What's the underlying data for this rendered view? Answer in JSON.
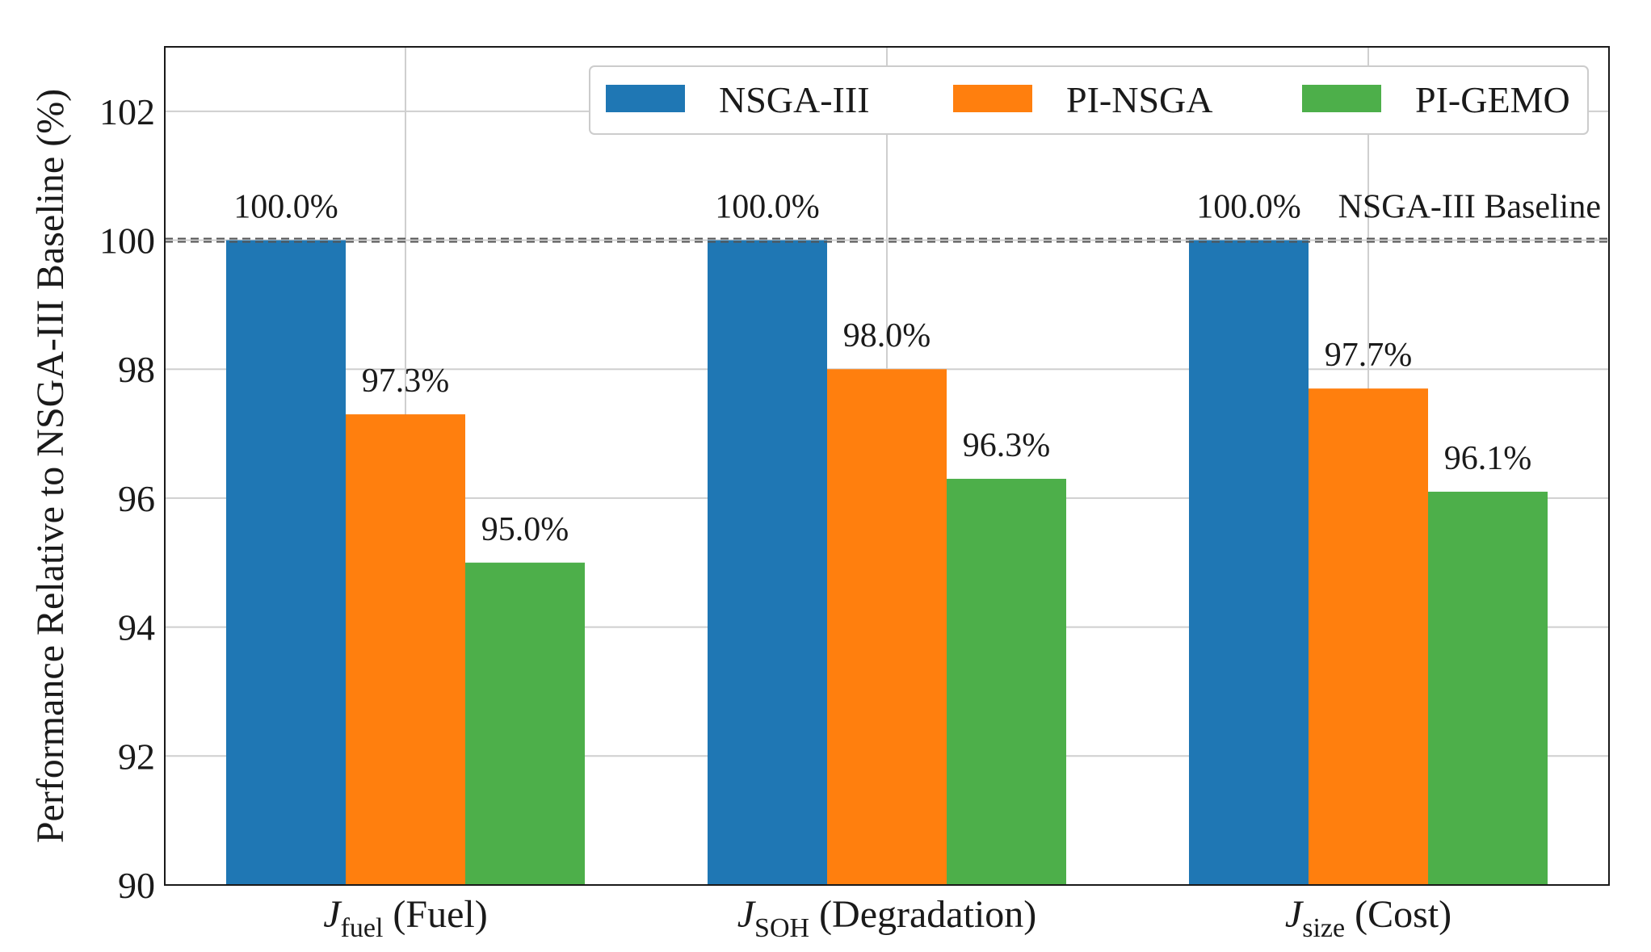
{
  "chart_data": {
    "type": "bar",
    "title": "",
    "ylabel": "Performance Relative to NSGA-III Baseline (%)",
    "xlabel": "",
    "ylim": [
      90,
      103
    ],
    "yticks": [
      90,
      92,
      94,
      96,
      98,
      100,
      102
    ],
    "grid": true,
    "legend_position": "top-right",
    "categories": [
      {
        "symbol": "J",
        "sub": "fuel",
        "rest": " (Fuel)"
      },
      {
        "symbol": "J",
        "sub": "SOH",
        "rest": " (Degradation)"
      },
      {
        "symbol": "J",
        "sub": "size",
        "rest": " (Cost)"
      }
    ],
    "series": [
      {
        "name": "NSGA-III",
        "color": "#1f77b4",
        "values": [
          100.0,
          100.0,
          100.0
        ],
        "labels": [
          "100.0%",
          "100.0%",
          "100.0%"
        ]
      },
      {
        "name": "PI-NSGA",
        "color": "#ff7f0e",
        "values": [
          97.3,
          98.0,
          97.7
        ],
        "labels": [
          "97.3%",
          "98.0%",
          "97.7%"
        ]
      },
      {
        "name": "PI-GEMO",
        "color": "#4daf4a",
        "values": [
          95.0,
          96.3,
          96.1
        ],
        "labels": [
          "95.0%",
          "96.3%",
          "96.1%"
        ]
      }
    ],
    "reference_line": {
      "value": 100,
      "label": "NSGA-III Baseline"
    }
  }
}
